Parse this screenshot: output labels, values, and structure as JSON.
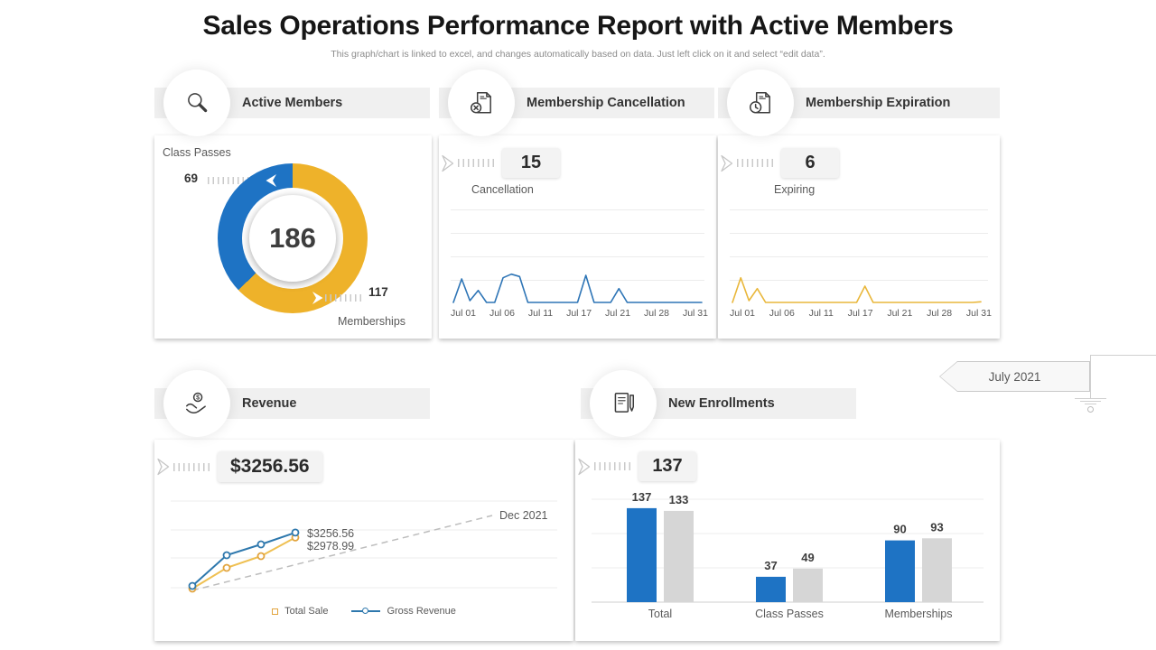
{
  "title": "Sales Operations Performance Report with Active Members",
  "subtitle": "This graph/chart is linked to excel, and changes automatically based on data. Just left click on it and select “edit data”.",
  "headers": {
    "active_members": "Active Members",
    "membership_cancellation": "Membership Cancellation",
    "membership_expiration": "Membership Expiration",
    "revenue": "Revenue",
    "new_enrollments": "New Enrollments"
  },
  "ribbon": {
    "label": "July 2021"
  },
  "colors": {
    "blue": "#1e73c4",
    "yellow": "#eeb22a",
    "spark_blue": "#2e75b6",
    "spark_yellow": "#e9b73b",
    "bar_gray": "#d6d6d6",
    "dashed_gray": "#bdbdbd"
  },
  "chart_data": [
    {
      "type": "pie",
      "subtype": "donut",
      "labels": [
        "Class Passes",
        "Memberships"
      ],
      "values": [
        69,
        117
      ],
      "colors": [
        "#1e73c4",
        "#eeb22a"
      ],
      "center_total": "186"
    },
    {
      "type": "line",
      "title": "Membership Cancellation",
      "badge": "15",
      "badge_label": "Cancellation",
      "color": "#2e75b6",
      "x_ticks": [
        "Jul 01",
        "Jul 06",
        "Jul 11",
        "Jul 17",
        "Jul 21",
        "Jul 28",
        "Jul 31"
      ],
      "ylim": [
        0,
        3
      ],
      "values": [
        0.15,
        2.1,
        0.3,
        1.15,
        0.15,
        0.15,
        2.2,
        2.5,
        2.3,
        0.15,
        0.15,
        0.15,
        0.15,
        0.15,
        0.15,
        0.15,
        2.4,
        0.15,
        0.15,
        0.15,
        1.3,
        0.15,
        0.15,
        0.15,
        0.15,
        0.15,
        0.15,
        0.15,
        0.15,
        0.15,
        0.15
      ]
    },
    {
      "type": "line",
      "title": "Membership Expiration",
      "badge": "6",
      "badge_label": "Expiring",
      "color": "#e9b73b",
      "x_ticks": [
        "Jul 01",
        "Jul 06",
        "Jul 11",
        "Jul 17",
        "Jul 21",
        "Jul 28",
        "Jul 31"
      ],
      "ylim": [
        0,
        3
      ],
      "values": [
        0.15,
        2.2,
        0.3,
        1.3,
        0.15,
        0.15,
        0.15,
        0.15,
        0.15,
        0.15,
        0.15,
        0.15,
        0.15,
        0.15,
        0.15,
        0.15,
        1.5,
        0.15,
        0.15,
        0.15,
        0.15,
        0.15,
        0.15,
        0.15,
        0.15,
        0.15,
        0.15,
        0.15,
        0.15,
        0.15,
        0.2
      ]
    },
    {
      "type": "line",
      "title": "Revenue",
      "badge": "$3256.56",
      "annotation": "Dec 2021",
      "ylim": [
        0,
        5000
      ],
      "series": [
        {
          "name": "Total Sale",
          "color": "#efc052",
          "marker_color": "#e2a43e",
          "values": [
            150,
            1300,
            1950,
            2978.99
          ],
          "end_label": "$2978.99"
        },
        {
          "name": "Gross Revenue",
          "color": "#2e78ad",
          "marker_color": "#2e78ad",
          "values": [
            300,
            2000,
            2600,
            3256.56
          ],
          "end_label": "$3256.56"
        }
      ]
    },
    {
      "type": "bar",
      "title": "New Enrollments",
      "badge": "137",
      "categories": [
        "Total",
        "Class Passes",
        "Memberships"
      ],
      "ylim": [
        0,
        150
      ],
      "series": [
        {
          "color": "#1e73c4",
          "values": [
            137,
            37,
            90
          ]
        },
        {
          "color": "#d6d6d6",
          "values": [
            133,
            49,
            93
          ]
        }
      ]
    }
  ]
}
